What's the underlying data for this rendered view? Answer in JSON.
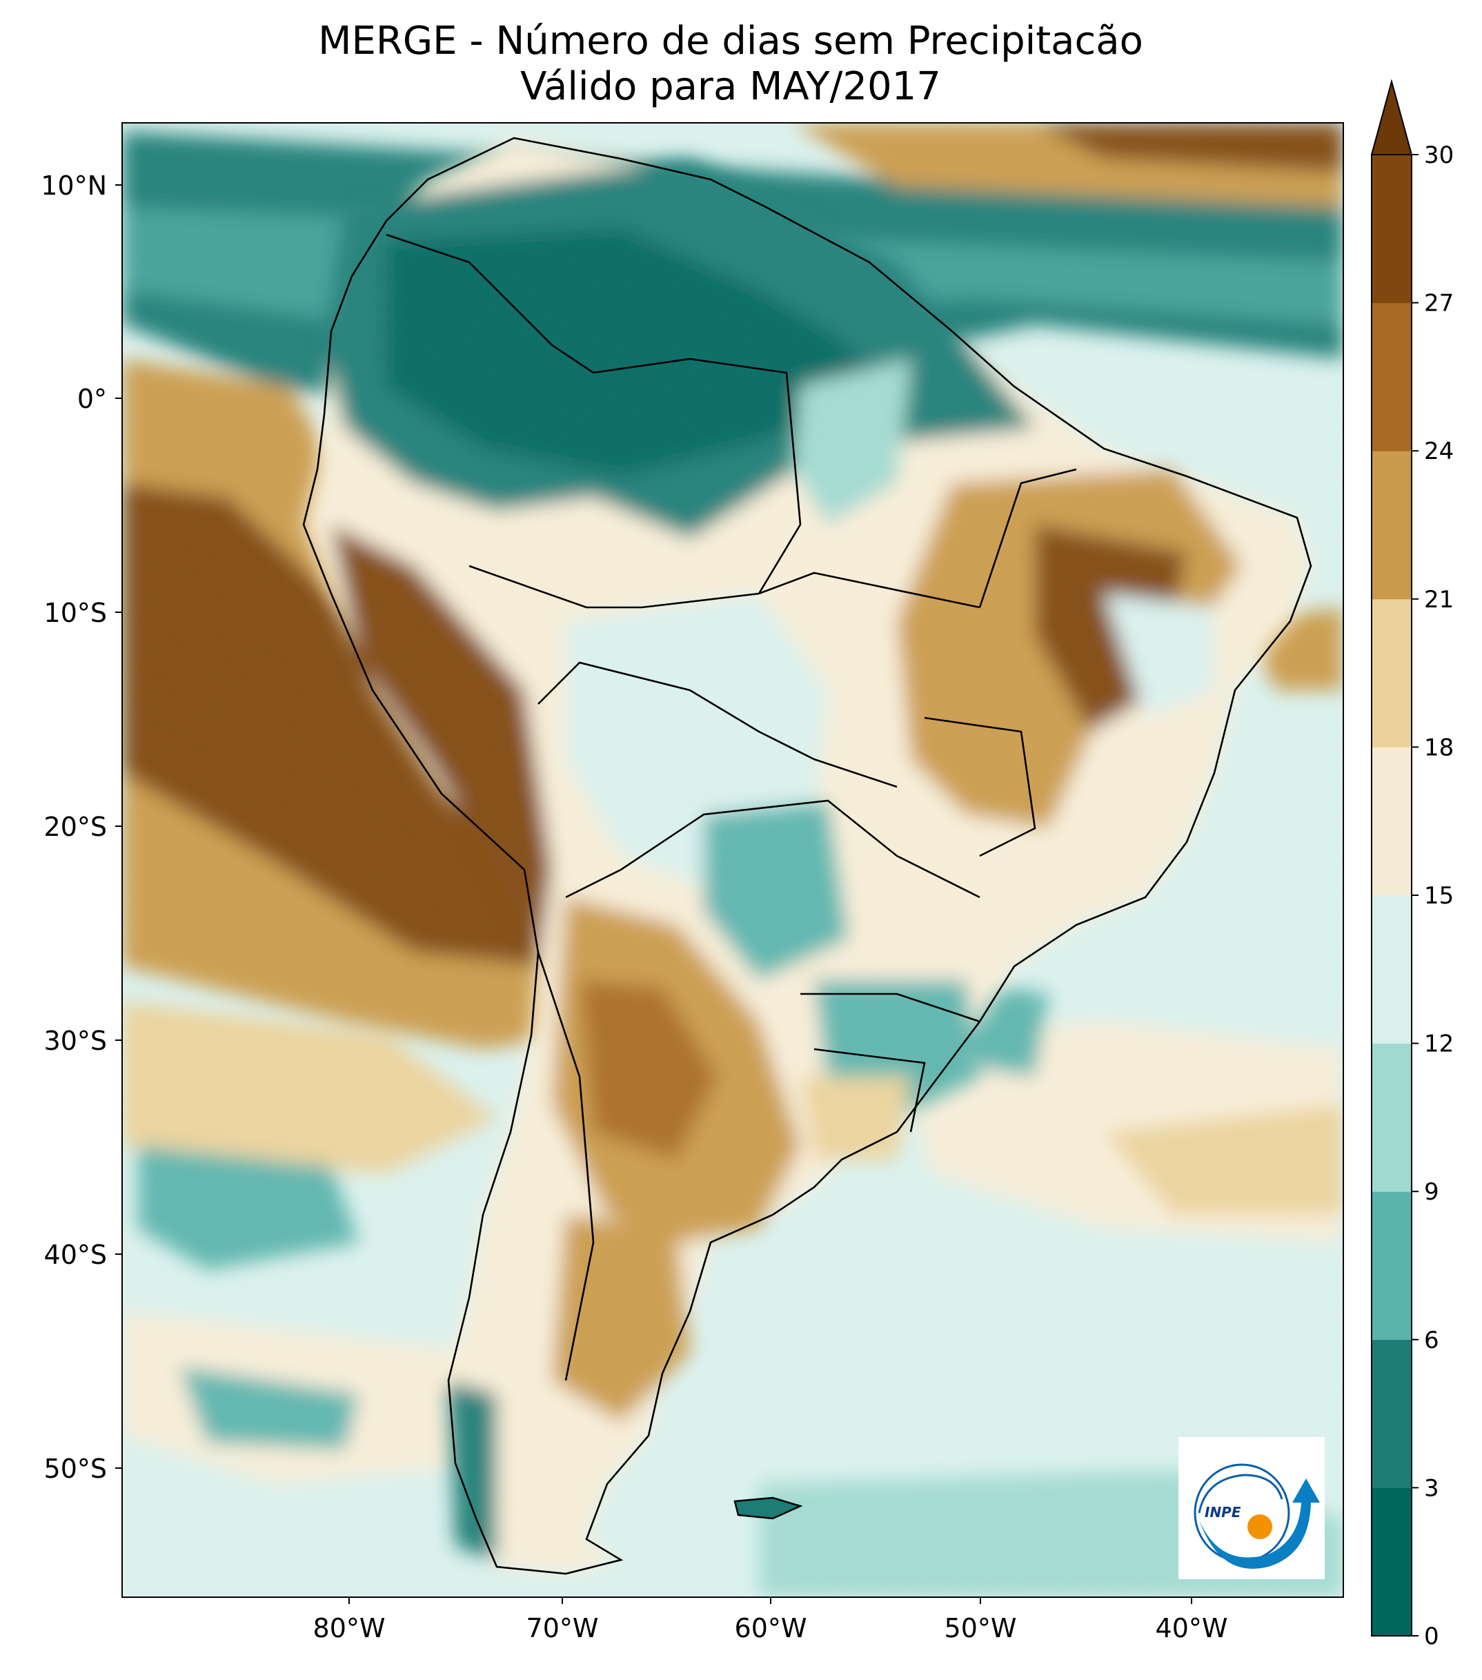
{
  "title": {
    "line1": "MERGE - Número de dias sem Precipitacão",
    "line2": "Válido para MAY/2017"
  },
  "axes": {
    "lat_labels": [
      "10°N",
      "0°",
      "10°S",
      "20°S",
      "30°S",
      "40°S",
      "50°S"
    ],
    "lon_labels": [
      "80°W",
      "70°W",
      "60°W",
      "50°W",
      "40°W"
    ]
  },
  "colorbar": {
    "ticks": [
      "0",
      "3",
      "6",
      "9",
      "12",
      "15",
      "18",
      "21",
      "24",
      "27",
      "30"
    ],
    "colors": [
      "#01665e",
      "#1b7d76",
      "#5ab4ac",
      "#a0d9d0",
      "#d9f0ec",
      "#f6ecd6",
      "#ead29a",
      "#c99a4a",
      "#a86a22",
      "#7f470f"
    ],
    "extend_color": "#6b3a08"
  },
  "logo": {
    "text": "INPE"
  },
  "palette": {
    "ocean": "#d9f0ec",
    "wet": "#1b7d76",
    "wettest": "#01665e",
    "mid_wet": "#5ab4ac",
    "dry_light": "#ead29a",
    "dry": "#c99a4a",
    "driest": "#7f470f"
  }
}
